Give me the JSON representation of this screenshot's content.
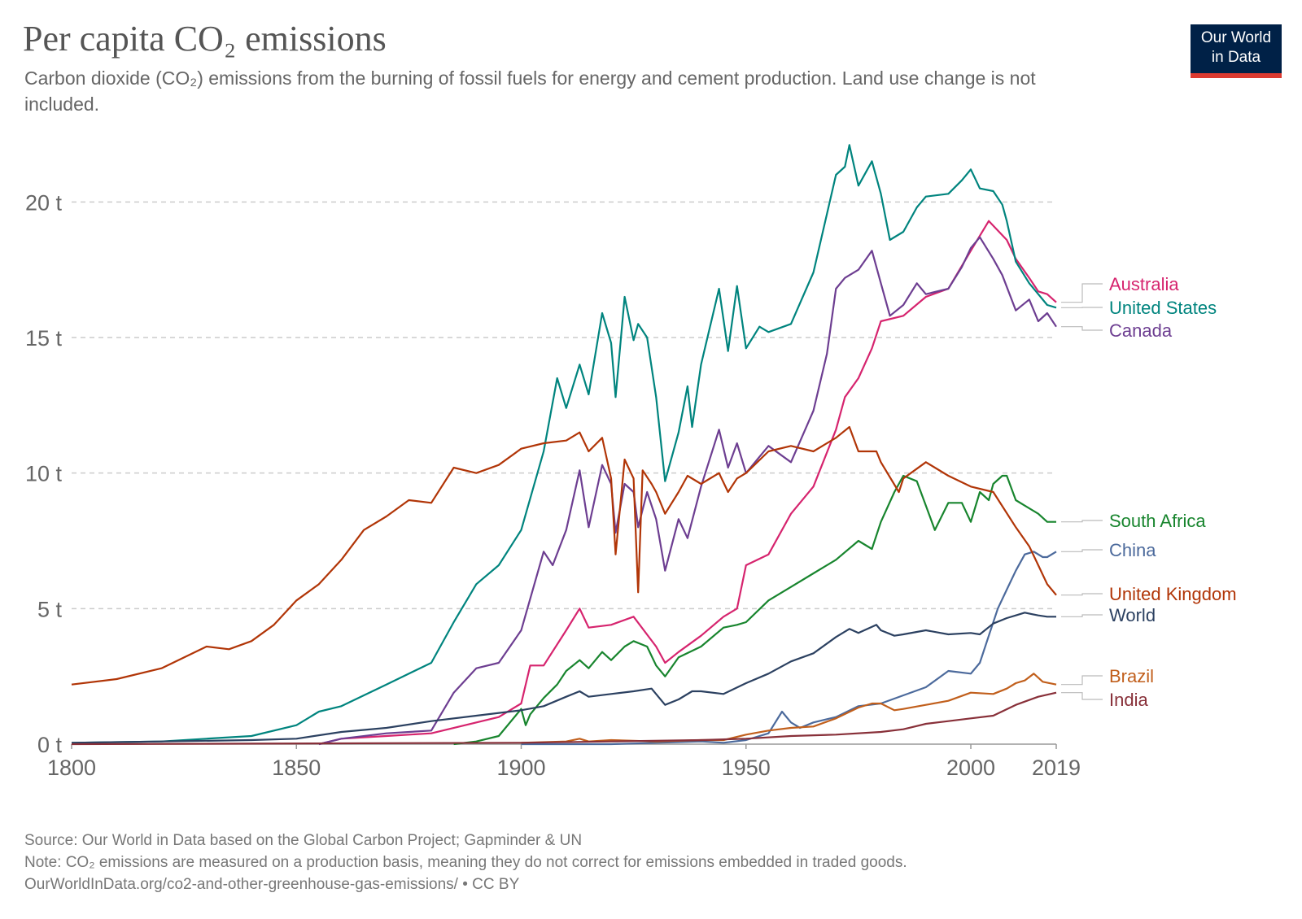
{
  "header": {
    "title": "Per capita CO₂ emissions",
    "subtitle": "Carbon dioxide (CO₂) emissions from the burning of fossil fuels for energy and cement production. Land use change is not included.",
    "logo_line1": "Our World",
    "logo_line2": "in Data"
  },
  "footer": {
    "source": "Source: Our World in Data based on the Global Carbon Project; Gapminder & UN",
    "note": "Note: CO₂ emissions are measured on a production basis, meaning they do not correct for emissions embedded in traded goods.",
    "url": "OurWorldInData.org/co2-and-other-greenhouse-gas-emissions/ • CC BY"
  },
  "colors": {
    "grid": "#cccccc",
    "axis_text": "#666666",
    "logo_bg": "#002147",
    "logo_accent": "#dc3a30"
  },
  "chart_data": {
    "type": "line",
    "title": "Per capita CO₂ emissions",
    "xlabel": "",
    "ylabel": "",
    "xlim": [
      1800,
      2019
    ],
    "ylim": [
      0,
      22.5
    ],
    "x_ticks": [
      1800,
      1850,
      1900,
      1950,
      2000,
      2019
    ],
    "y_ticks": [
      {
        "value": 0,
        "label": "0 t"
      },
      {
        "value": 5,
        "label": "5 t"
      },
      {
        "value": 10,
        "label": "10 t"
      },
      {
        "value": 15,
        "label": "15 t"
      },
      {
        "value": 20,
        "label": "20 t"
      }
    ],
    "grid": true,
    "legend": "right, end-of-line labels",
    "series": [
      {
        "name": "Australia",
        "color": "#d6246e",
        "x": [
          1855,
          1860,
          1870,
          1880,
          1895,
          1900,
          1902,
          1905,
          1910,
          1913,
          1915,
          1920,
          1925,
          1930,
          1932,
          1935,
          1940,
          1945,
          1948,
          1950,
          1955,
          1960,
          1965,
          1970,
          1972,
          1975,
          1978,
          1980,
          1985,
          1990,
          1995,
          2000,
          2004,
          2008,
          2010,
          2013,
          2015,
          2017,
          2019
        ],
        "y": [
          0,
          0.2,
          0.3,
          0.4,
          1.0,
          1.5,
          2.9,
          2.9,
          4.2,
          5.0,
          4.3,
          4.4,
          4.7,
          3.6,
          3.0,
          3.4,
          4.0,
          4.7,
          5.0,
          6.6,
          7.0,
          8.5,
          9.5,
          11.6,
          12.8,
          13.5,
          14.6,
          15.6,
          15.8,
          16.5,
          16.8,
          18.2,
          19.3,
          18.6,
          17.9,
          17.2,
          16.7,
          16.6,
          16.3
        ]
      },
      {
        "name": "United States",
        "color": "#00847e",
        "x": [
          1800,
          1820,
          1830,
          1840,
          1850,
          1855,
          1860,
          1870,
          1880,
          1885,
          1890,
          1895,
          1900,
          1905,
          1908,
          1910,
          1913,
          1915,
          1918,
          1920,
          1921,
          1923,
          1925,
          1926,
          1928,
          1930,
          1932,
          1935,
          1937,
          1938,
          1940,
          1944,
          1946,
          1948,
          1950,
          1953,
          1955,
          1960,
          1965,
          1970,
          1972,
          1973,
          1975,
          1978,
          1980,
          1982,
          1985,
          1988,
          1990,
          1995,
          1998,
          2000,
          2002,
          2005,
          2007,
          2008,
          2010,
          2013,
          2015,
          2017,
          2019
        ],
        "y": [
          0.05,
          0.1,
          0.2,
          0.3,
          0.7,
          1.2,
          1.4,
          2.2,
          3.0,
          4.5,
          5.9,
          6.6,
          7.9,
          10.8,
          13.5,
          12.4,
          14.0,
          12.9,
          15.9,
          14.8,
          12.8,
          16.5,
          14.9,
          15.5,
          15.0,
          12.8,
          9.7,
          11.5,
          13.2,
          11.7,
          14.0,
          16.8,
          14.5,
          16.9,
          14.6,
          15.4,
          15.2,
          15.5,
          17.4,
          21.0,
          21.3,
          22.1,
          20.6,
          21.5,
          20.3,
          18.6,
          18.9,
          19.8,
          20.2,
          20.3,
          20.8,
          21.2,
          20.5,
          20.4,
          19.9,
          19.3,
          17.8,
          17.0,
          16.6,
          16.2,
          16.1
        ]
      },
      {
        "name": "Canada",
        "color": "#6d3e91",
        "x": [
          1855,
          1860,
          1870,
          1880,
          1885,
          1890,
          1895,
          1900,
          1905,
          1907,
          1910,
          1913,
          1915,
          1918,
          1920,
          1921,
          1923,
          1925,
          1926,
          1928,
          1930,
          1932,
          1935,
          1937,
          1940,
          1944,
          1946,
          1948,
          1950,
          1953,
          1955,
          1960,
          1965,
          1968,
          1970,
          1972,
          1975,
          1978,
          1980,
          1982,
          1985,
          1988,
          1990,
          1995,
          1998,
          2000,
          2002,
          2005,
          2007,
          2010,
          2013,
          2015,
          2017,
          2019
        ],
        "y": [
          0,
          0.2,
          0.4,
          0.5,
          1.9,
          2.8,
          3.0,
          4.2,
          7.1,
          6.6,
          7.9,
          10.1,
          8.0,
          10.3,
          9.6,
          7.8,
          9.6,
          9.3,
          8.0,
          9.3,
          8.3,
          6.4,
          8.3,
          7.6,
          9.5,
          11.6,
          10.2,
          11.1,
          10.0,
          10.6,
          11.0,
          10.4,
          12.3,
          14.4,
          16.8,
          17.2,
          17.5,
          18.2,
          17.0,
          15.8,
          16.2,
          17.0,
          16.6,
          16.8,
          17.6,
          18.3,
          18.7,
          17.9,
          17.3,
          16.0,
          16.4,
          15.6,
          15.9,
          15.4
        ]
      },
      {
        "name": "South Africa",
        "color": "#18852e",
        "x": [
          1885,
          1890,
          1895,
          1900,
          1901,
          1902,
          1905,
          1908,
          1910,
          1913,
          1915,
          1918,
          1920,
          1923,
          1925,
          1928,
          1930,
          1932,
          1935,
          1940,
          1945,
          1948,
          1950,
          1955,
          1960,
          1965,
          1970,
          1975,
          1978,
          1980,
          1983,
          1985,
          1988,
          1990,
          1992,
          1995,
          1998,
          2000,
          2002,
          2004,
          2005,
          2007,
          2008,
          2010,
          2012,
          2015,
          2017,
          2019
        ],
        "y": [
          0,
          0.1,
          0.3,
          1.3,
          0.7,
          1.1,
          1.7,
          2.2,
          2.7,
          3.1,
          2.8,
          3.4,
          3.1,
          3.6,
          3.8,
          3.6,
          2.9,
          2.5,
          3.2,
          3.6,
          4.3,
          4.4,
          4.5,
          5.3,
          5.8,
          6.3,
          6.8,
          7.5,
          7.2,
          8.2,
          9.3,
          9.9,
          9.7,
          8.8,
          7.9,
          8.9,
          8.9,
          8.2,
          9.3,
          9.0,
          9.6,
          9.9,
          9.9,
          9.0,
          8.8,
          8.5,
          8.2,
          8.2
        ]
      },
      {
        "name": "China",
        "color": "#4c6a9c",
        "x": [
          1900,
          1920,
          1940,
          1945,
          1950,
          1955,
          1958,
          1960,
          1962,
          1965,
          1970,
          1975,
          1980,
          1985,
          1990,
          1995,
          2000,
          2002,
          2004,
          2006,
          2008,
          2010,
          2012,
          2014,
          2016,
          2017,
          2019
        ],
        "y": [
          0,
          0,
          0.1,
          0.05,
          0.15,
          0.4,
          1.2,
          0.8,
          0.6,
          0.8,
          1.0,
          1.4,
          1.5,
          1.8,
          2.1,
          2.7,
          2.6,
          3.0,
          4.0,
          5.0,
          5.7,
          6.4,
          7.0,
          7.1,
          6.9,
          6.9,
          7.1
        ]
      },
      {
        "name": "United Kingdom",
        "color": "#b13507",
        "x": [
          1800,
          1810,
          1820,
          1830,
          1835,
          1840,
          1845,
          1850,
          1855,
          1860,
          1865,
          1870,
          1875,
          1880,
          1885,
          1890,
          1895,
          1900,
          1905,
          1910,
          1913,
          1915,
          1918,
          1920,
          1921,
          1923,
          1925,
          1926,
          1927,
          1929,
          1930,
          1932,
          1935,
          1937,
          1940,
          1944,
          1946,
          1948,
          1950,
          1955,
          1960,
          1965,
          1970,
          1973,
          1975,
          1979,
          1980,
          1984,
          1985,
          1990,
          1995,
          2000,
          2005,
          2010,
          2013,
          2015,
          2017,
          2019
        ],
        "y": [
          2.2,
          2.4,
          2.8,
          3.6,
          3.5,
          3.8,
          4.4,
          5.3,
          5.9,
          6.8,
          7.9,
          8.4,
          9.0,
          8.9,
          10.2,
          10.0,
          10.3,
          10.9,
          11.1,
          11.2,
          11.5,
          10.8,
          11.3,
          9.8,
          7.0,
          10.5,
          9.8,
          5.6,
          10.1,
          9.6,
          9.3,
          8.5,
          9.3,
          9.9,
          9.6,
          10.0,
          9.3,
          9.8,
          10.0,
          10.8,
          11.0,
          10.8,
          11.3,
          11.7,
          10.8,
          10.8,
          10.4,
          9.3,
          9.8,
          10.4,
          9.9,
          9.5,
          9.3,
          8.0,
          7.3,
          6.6,
          5.9,
          5.5
        ]
      },
      {
        "name": "World",
        "color": "#2c4161",
        "x": [
          1800,
          1820,
          1840,
          1850,
          1860,
          1870,
          1880,
          1890,
          1900,
          1905,
          1910,
          1913,
          1915,
          1920,
          1925,
          1929,
          1932,
          1935,
          1938,
          1940,
          1945,
          1950,
          1955,
          1960,
          1965,
          1970,
          1973,
          1975,
          1979,
          1980,
          1983,
          1985,
          1990,
          1995,
          2000,
          2002,
          2005,
          2008,
          2010,
          2012,
          2015,
          2017,
          2019
        ],
        "y": [
          0.05,
          0.1,
          0.15,
          0.2,
          0.45,
          0.6,
          0.85,
          1.05,
          1.25,
          1.4,
          1.75,
          1.95,
          1.75,
          1.85,
          1.95,
          2.05,
          1.45,
          1.65,
          1.95,
          1.95,
          1.85,
          2.25,
          2.6,
          3.05,
          3.35,
          3.95,
          4.25,
          4.1,
          4.4,
          4.2,
          4.0,
          4.05,
          4.2,
          4.05,
          4.1,
          4.05,
          4.45,
          4.65,
          4.75,
          4.85,
          4.75,
          4.7,
          4.7
        ]
      },
      {
        "name": "Brazil",
        "color": "#c15f1c",
        "x": [
          1900,
          1910,
          1913,
          1915,
          1920,
          1930,
          1940,
          1945,
          1950,
          1955,
          1960,
          1965,
          1970,
          1975,
          1978,
          1980,
          1983,
          1985,
          1990,
          1995,
          2000,
          2005,
          2008,
          2010,
          2012,
          2014,
          2016,
          2019
        ],
        "y": [
          0.05,
          0.1,
          0.2,
          0.1,
          0.15,
          0.1,
          0.15,
          0.15,
          0.35,
          0.5,
          0.6,
          0.65,
          0.95,
          1.35,
          1.5,
          1.5,
          1.25,
          1.3,
          1.45,
          1.6,
          1.9,
          1.85,
          2.05,
          2.25,
          2.35,
          2.6,
          2.3,
          2.2
        ]
      },
      {
        "name": "India",
        "color": "#883039",
        "x": [
          1800,
          1900,
          1920,
          1940,
          1950,
          1960,
          1970,
          1980,
          1985,
          1990,
          1995,
          2000,
          2005,
          2010,
          2015,
          2019
        ],
        "y": [
          0,
          0.05,
          0.1,
          0.15,
          0.2,
          0.3,
          0.35,
          0.45,
          0.55,
          0.75,
          0.85,
          0.95,
          1.05,
          1.45,
          1.75,
          1.9
        ]
      }
    ]
  }
}
